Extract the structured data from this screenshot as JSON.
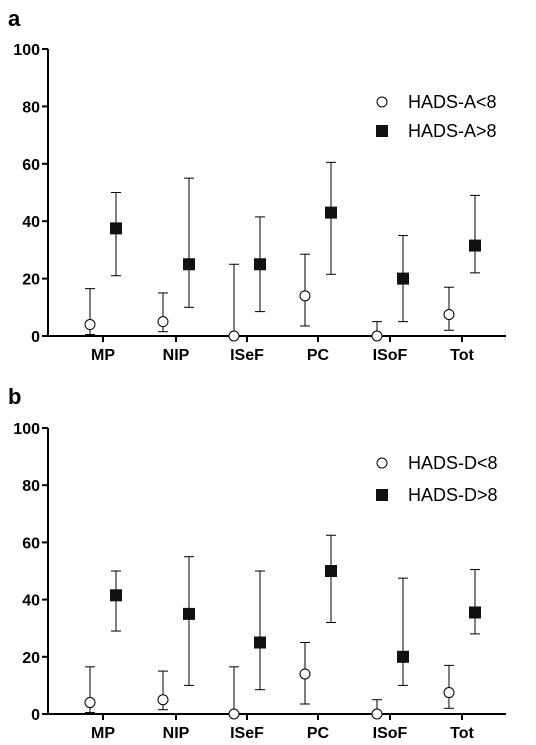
{
  "chart_data": [
    {
      "type": "scatter",
      "panel_label": "a",
      "categories": [
        "MP",
        "NIP",
        "ISeF",
        "PC",
        "ISoF",
        "Tot"
      ],
      "ylim": [
        0,
        100
      ],
      "yticks": [
        0,
        20,
        40,
        60,
        80,
        100
      ],
      "legend_position": "top-right",
      "grid": false,
      "series": [
        {
          "name": "HADS-A<8",
          "marker": "open-circle",
          "values": [
            4,
            5,
            0,
            14,
            0,
            7.5
          ],
          "err_low": [
            0.5,
            1.5,
            0,
            3.5,
            0,
            2
          ],
          "err_high": [
            16.5,
            15,
            25,
            28.5,
            5,
            17
          ]
        },
        {
          "name": "HADS-A>8",
          "marker": "filled-square",
          "values": [
            37.5,
            25,
            25,
            43,
            20,
            31.5
          ],
          "err_low": [
            21,
            10,
            8.5,
            21.5,
            5,
            22
          ],
          "err_high": [
            50,
            55,
            41.5,
            60.5,
            35,
            49
          ]
        }
      ]
    },
    {
      "type": "scatter",
      "panel_label": "b",
      "categories": [
        "MP",
        "NIP",
        "ISeF",
        "PC",
        "ISoF",
        "Tot"
      ],
      "ylim": [
        0,
        100
      ],
      "yticks": [
        0,
        20,
        40,
        60,
        80,
        100
      ],
      "legend_position": "top-right",
      "grid": false,
      "series": [
        {
          "name": "HADS-D<8",
          "marker": "open-circle",
          "values": [
            4,
            5,
            0,
            14,
            0,
            7.5
          ],
          "err_low": [
            0.5,
            1.5,
            0,
            3.5,
            0,
            2
          ],
          "err_high": [
            16.5,
            15,
            16.5,
            25,
            5,
            17
          ]
        },
        {
          "name": "HADS-D>8",
          "marker": "filled-square",
          "values": [
            41.5,
            35,
            25,
            50,
            20,
            35.5
          ],
          "err_low": [
            29,
            10,
            8.5,
            32,
            10,
            28
          ],
          "err_high": [
            50,
            55,
            50,
            62.5,
            47.5,
            50.5
          ]
        }
      ]
    }
  ]
}
